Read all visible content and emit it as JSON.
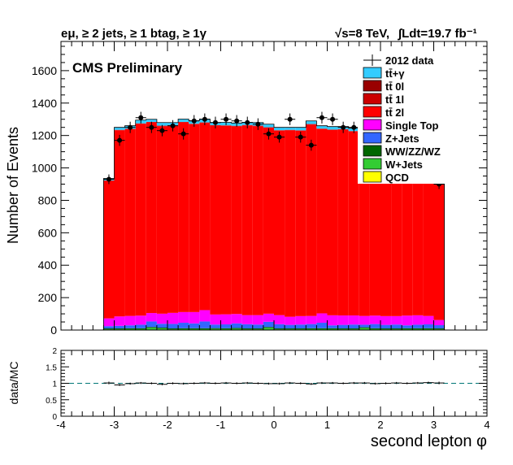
{
  "chart_data": [
    {
      "type": "bar",
      "stacked": true,
      "header_left": "eμ, ≥ 2 jets, ≥ 1 btag, ≥ 1γ",
      "header_right_sqrt_s": "√s=8 TeV,",
      "header_right_lumi": "∫Ldt=19.7 fb⁻¹",
      "annotation": "CMS Preliminary",
      "ylabel": "Number of Events",
      "xlim": [
        -4,
        4
      ],
      "ylim": [
        0,
        1780
      ],
      "y_ticks": [
        0,
        200,
        400,
        600,
        800,
        1000,
        1200,
        1400,
        1600
      ],
      "bin_edges": [
        -3.2,
        -3.0,
        -2.8,
        -2.6,
        -2.4,
        -2.2,
        -2.0,
        -1.8,
        -1.6,
        -1.4,
        -1.2,
        -1.0,
        -0.8,
        -0.6,
        -0.4,
        -0.2,
        0.0,
        0.2,
        0.4,
        0.6,
        0.8,
        1.0,
        1.2,
        1.4,
        1.6,
        1.8,
        2.0,
        2.2,
        2.4,
        2.6,
        2.8,
        3.0,
        3.2
      ],
      "legend_position": "top-right",
      "legend": [
        {
          "label": "2012 data",
          "color": "#000000",
          "marker": "data"
        },
        {
          "label": "tt̄+γ",
          "color": "#33ccff"
        },
        {
          "label": "tt̄ 0l",
          "color": "#990000"
        },
        {
          "label": "tt̄ 1l",
          "color": "#cc0000"
        },
        {
          "label": "tt̄ 2l",
          "color": "#ff0000"
        },
        {
          "label": "Single Top",
          "color": "#ff00ff"
        },
        {
          "label": "Z+Jets",
          "color": "#3366ff"
        },
        {
          "label": "WW/ZZ/WZ",
          "color": "#006600"
        },
        {
          "label": "W+Jets",
          "color": "#33cc33"
        },
        {
          "label": "QCD",
          "color": "#ffff00"
        }
      ],
      "series": [
        {
          "name": "QCD",
          "color": "#ffff00",
          "values": [
            1,
            1,
            1,
            1,
            1,
            1,
            1,
            1,
            1,
            1,
            1,
            1,
            1,
            1,
            1,
            1,
            1,
            1,
            1,
            1,
            1,
            1,
            1,
            1,
            1,
            1,
            1,
            1,
            1,
            1,
            1,
            1
          ]
        },
        {
          "name": "W+Jets",
          "color": "#33cc33",
          "values": [
            3,
            3,
            4,
            4,
            12,
            8,
            3,
            4,
            4,
            4,
            5,
            4,
            6,
            3,
            3,
            12,
            3,
            3,
            3,
            4,
            4,
            4,
            3,
            3,
            10,
            4,
            3,
            3,
            4,
            4,
            4,
            3
          ]
        },
        {
          "name": "WW/ZZ/WZ",
          "color": "#006600",
          "values": [
            6,
            6,
            6,
            6,
            6,
            6,
            6,
            6,
            6,
            6,
            6,
            6,
            6,
            6,
            6,
            6,
            6,
            6,
            6,
            6,
            6,
            6,
            6,
            6,
            6,
            6,
            6,
            6,
            6,
            6,
            6,
            6
          ]
        },
        {
          "name": "Z+Jets",
          "color": "#3366ff",
          "values": [
            14,
            16,
            18,
            22,
            34,
            24,
            28,
            34,
            30,
            42,
            22,
            24,
            28,
            26,
            24,
            32,
            26,
            22,
            24,
            26,
            34,
            18,
            22,
            24,
            16,
            26,
            22,
            24,
            18,
            22,
            24,
            20
          ]
        },
        {
          "name": "Single Top",
          "color": "#ff00ff",
          "values": [
            48,
            58,
            58,
            56,
            52,
            62,
            68,
            66,
            70,
            70,
            62,
            62,
            58,
            56,
            58,
            50,
            56,
            50,
            52,
            50,
            58,
            62,
            58,
            56,
            54,
            52,
            54,
            52,
            60,
            58,
            52,
            32
          ]
        },
        {
          "name": "tt̄ 2l",
          "color": "#ff0000",
          "values": [
            848,
            1148,
            1152,
            1183,
            1176,
            1157,
            1155,
            1170,
            1159,
            1155,
            1165,
            1163,
            1158,
            1170,
            1166,
            1147,
            1138,
            1150,
            1143,
            1181,
            1137,
            1143,
            1146,
            1135,
            1143,
            1139,
            1149,
            1144,
            1147,
            1118,
            1119,
            833
          ]
        },
        {
          "name": "tt̄ 1l",
          "color": "#cc0000",
          "values": [
            2,
            2,
            2,
            2,
            2,
            2,
            2,
            2,
            2,
            2,
            2,
            2,
            2,
            2,
            2,
            2,
            2,
            2,
            2,
            2,
            2,
            2,
            2,
            2,
            2,
            2,
            2,
            2,
            2,
            2,
            2,
            2
          ]
        },
        {
          "name": "tt̄ 0l",
          "color": "#990000",
          "values": [
            1,
            1,
            1,
            1,
            1,
            1,
            1,
            1,
            1,
            1,
            1,
            1,
            1,
            1,
            1,
            1,
            1,
            1,
            1,
            1,
            1,
            1,
            1,
            1,
            1,
            1,
            1,
            1,
            1,
            1,
            1,
            1
          ]
        },
        {
          "name": "tt̄+γ",
          "color": "#33ccff",
          "values": [
            12,
            15,
            18,
            20,
            16,
            19,
            16,
            17,
            18,
            20,
            16,
            18,
            17,
            16,
            19,
            19,
            17,
            15,
            18,
            19,
            17,
            18,
            16,
            17,
            18,
            19,
            17,
            18,
            16,
            17,
            16,
            12
          ]
        }
      ],
      "data_points": {
        "name": "2012 data",
        "values": [
          930,
          1170,
          1250,
          1310,
          1250,
          1230,
          1260,
          1210,
          1290,
          1300,
          1280,
          1300,
          1290,
          1280,
          1270,
          1210,
          1190,
          1300,
          1190,
          1140,
          1310,
          1300,
          1250,
          1250,
          1250,
          1210,
          1270,
          1250,
          1250,
          1220,
          1200,
          900
        ],
        "y_err": [
          30,
          34,
          35,
          36,
          35,
          35,
          35,
          35,
          36,
          36,
          36,
          36,
          36,
          36,
          36,
          35,
          34,
          36,
          34,
          34,
          36,
          36,
          35,
          35,
          35,
          35,
          36,
          35,
          35,
          35,
          35,
          30
        ]
      }
    },
    {
      "type": "scatter",
      "ylabel": "data/MC",
      "xlabel": "second lepton φ",
      "xlim": [
        -4,
        4
      ],
      "ylim": [
        0,
        2
      ],
      "y_ticks": [
        0,
        0.5,
        1,
        1.5,
        2
      ],
      "y_tick_labels": [
        "0",
        "0.5",
        "1",
        "1.5",
        "2"
      ],
      "x_ticks": [
        -4,
        -3,
        -2,
        -1,
        0,
        1,
        2,
        3,
        4
      ],
      "x_tick_labels": [
        "-4",
        "-3",
        "-2",
        "-1",
        "0",
        "1",
        "2",
        "3",
        "4"
      ],
      "reference_line": 1,
      "values": [
        1.01,
        0.95,
        0.99,
        1.01,
        1.0,
        0.97,
        1.0,
        0.99,
        1.0,
        1.01,
        1.0,
        1.01,
        1.0,
        1.01,
        1.0,
        0.99,
        0.99,
        1.01,
        1.0,
        0.98,
        1.01,
        1.01,
        1.0,
        1.01,
        1.01,
        0.99,
        1.0,
        1.01,
        1.0,
        1.01,
        1.02,
        1.01
      ],
      "y_err": [
        0.04,
        0.03,
        0.03,
        0.03,
        0.03,
        0.03,
        0.03,
        0.03,
        0.03,
        0.03,
        0.03,
        0.03,
        0.03,
        0.03,
        0.03,
        0.03,
        0.03,
        0.03,
        0.03,
        0.03,
        0.03,
        0.03,
        0.03,
        0.03,
        0.03,
        0.03,
        0.03,
        0.03,
        0.03,
        0.03,
        0.03,
        0.04
      ]
    }
  ]
}
